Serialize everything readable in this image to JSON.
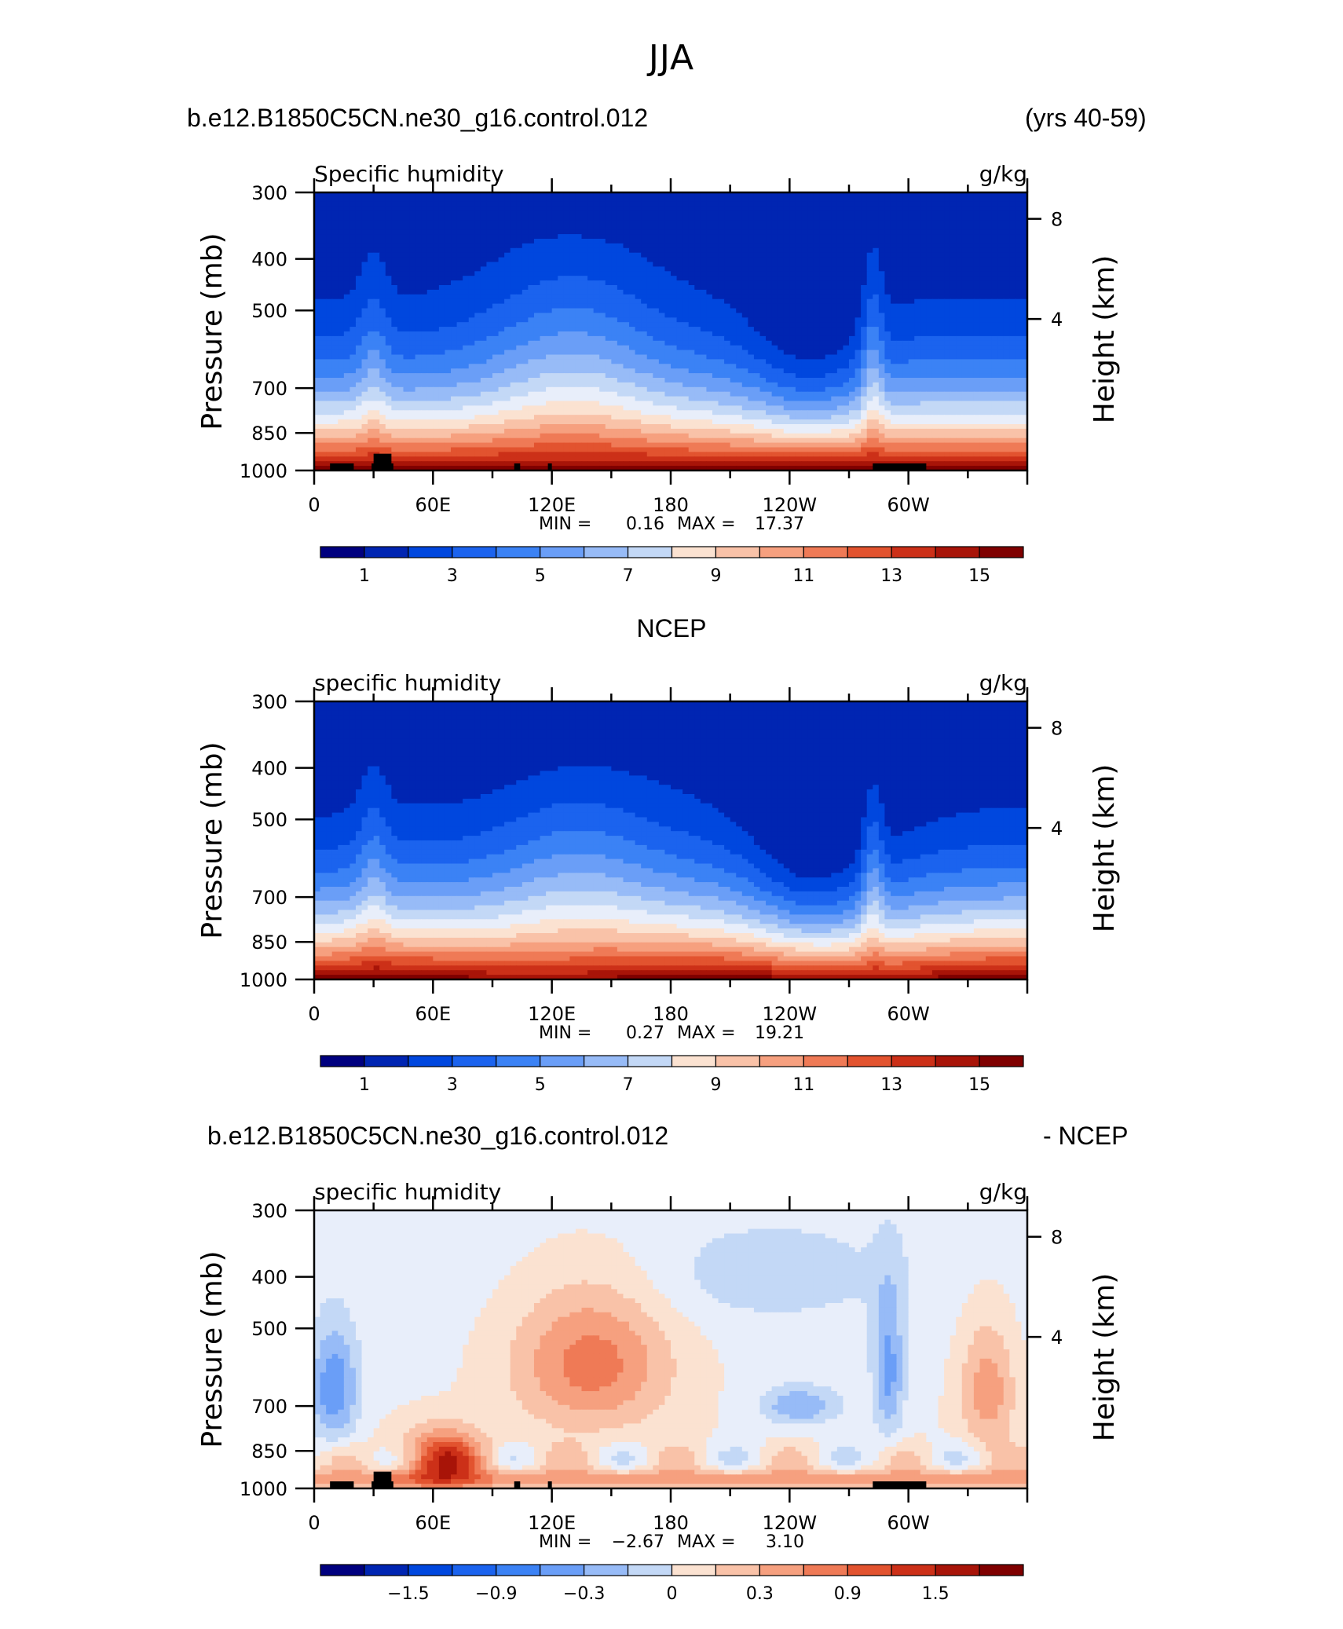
{
  "title": "JJA",
  "top_header": {
    "case": "b.e12.B1850C5CN.ne30_g16.control.012",
    "years": "(yrs 40-59)"
  },
  "middle_header": {
    "title": "NCEP"
  },
  "bottom_header": {
    "case": "b.e12.B1850C5CN.ne30_g16.control.012",
    "suffix": "- NCEP"
  },
  "palette": [
    "#00007f",
    "#0025b2",
    "#0047de",
    "#1b63ee",
    "#3b82f5",
    "#6a9ef7",
    "#97bbf7",
    "#c3d8f6",
    "#e8eefa",
    "#fbe2d1",
    "#f9c2a8",
    "#f6a07f",
    "#ef7a56",
    "#e2532f",
    "#cc3018",
    "#a81408",
    "#7f0000"
  ],
  "chart_data": [
    {
      "type": "contour",
      "panel": "model",
      "left_label": "Specific humidity",
      "right_label": "g/kg",
      "ylabel": "Pressure (mb)",
      "ylabel_right": "Height (km)",
      "yticks": [
        300,
        400,
        500,
        700,
        850,
        1000
      ],
      "yticks_right": [
        8,
        4
      ],
      "ylim": [
        1000,
        300
      ],
      "xticks": [
        "0",
        "60E",
        "120E",
        "180",
        "120W",
        "60W"
      ],
      "xlim": [
        0,
        360
      ],
      "min_label": "MIN =",
      "min_value": "0.16",
      "max_label": "MAX =",
      "max_value": "17.37",
      "colorbar_labels": [
        "1",
        "3",
        "5",
        "7",
        "9",
        "11",
        "13",
        "15"
      ],
      "levels_range": [
        0,
        16
      ]
    },
    {
      "type": "contour",
      "panel": "ncep",
      "left_label": "specific humidity",
      "right_label": "g/kg",
      "ylabel": "Pressure (mb)",
      "ylabel_right": "Height (km)",
      "yticks": [
        300,
        400,
        500,
        700,
        850,
        1000
      ],
      "yticks_right": [
        8,
        4
      ],
      "ylim": [
        1000,
        300
      ],
      "xticks": [
        "0",
        "60E",
        "120E",
        "180",
        "120W",
        "60W"
      ],
      "xlim": [
        0,
        360
      ],
      "min_label": "MIN =",
      "min_value": "0.27",
      "max_label": "MAX =",
      "max_value": "19.21",
      "colorbar_labels": [
        "1",
        "3",
        "5",
        "7",
        "9",
        "11",
        "13",
        "15"
      ],
      "levels_range": [
        0,
        16
      ]
    },
    {
      "type": "contour",
      "panel": "difference",
      "left_label": "specific humidity",
      "right_label": "g/kg",
      "ylabel": "Pressure (mb)",
      "ylabel_right": "Height (km)",
      "yticks": [
        300,
        400,
        500,
        700,
        850,
        1000
      ],
      "yticks_right": [
        8,
        4
      ],
      "ylim": [
        1000,
        300
      ],
      "xticks": [
        "0",
        "60E",
        "120E",
        "180",
        "120W",
        "60W"
      ],
      "xlim": [
        0,
        360
      ],
      "min_label": "MIN =",
      "min_value": "−2.67",
      "max_label": "MAX =",
      "max_value": "3.10",
      "colorbar_labels": [
        "−1.5",
        "−0.9",
        "−0.3",
        "0",
        "0.3",
        "0.9",
        "1.5"
      ],
      "levels_range": [
        -2.4,
        2.4
      ]
    }
  ]
}
